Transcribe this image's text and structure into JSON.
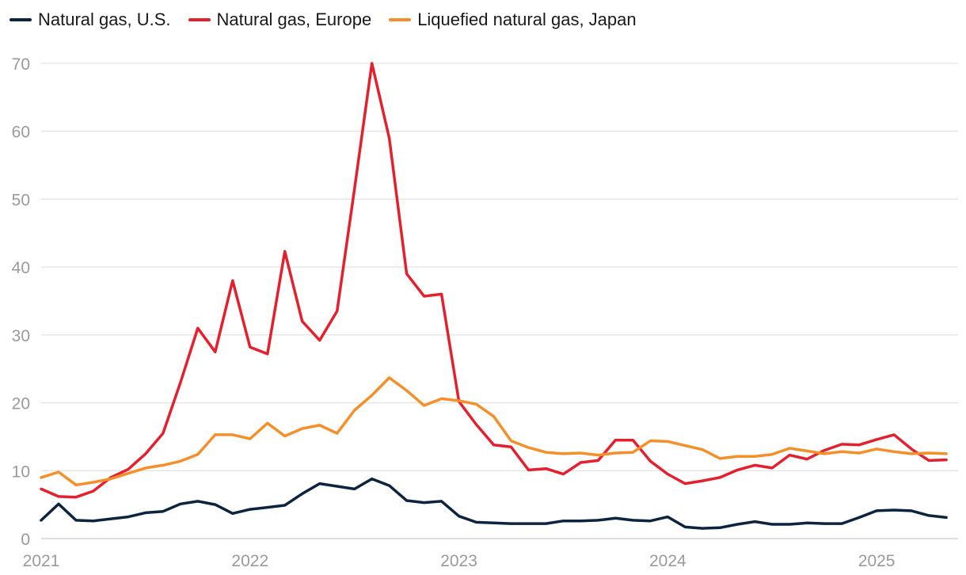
{
  "chart_data": {
    "type": "line",
    "title": "",
    "xlabel": "",
    "ylabel": "",
    "ylim": [
      0,
      70
    ],
    "yticks": [
      0,
      10,
      20,
      30,
      40,
      50,
      60,
      70
    ],
    "xlim": [
      2021.0,
      2025.39
    ],
    "xticks": [
      2021,
      2022,
      2023,
      2024,
      2025
    ],
    "xtick_labels": [
      "2021",
      "2022",
      "2023",
      "2024",
      "2025"
    ],
    "grid": "horizontal",
    "legend_position": "top-left",
    "series": [
      {
        "name": "Natural gas, U.S.",
        "color": "#0d2440",
        "values": [
          2.7,
          5.1,
          2.7,
          2.6,
          2.9,
          3.2,
          3.8,
          4.0,
          5.1,
          5.5,
          5.0,
          3.7,
          4.3,
          4.6,
          4.9,
          6.6,
          8.1,
          7.7,
          7.3,
          8.8,
          7.8,
          5.6,
          5.3,
          5.5,
          3.3,
          2.4,
          2.3,
          2.2,
          2.2,
          2.2,
          2.6,
          2.6,
          2.7,
          3.0,
          2.7,
          2.6,
          3.2,
          1.7,
          1.5,
          1.6,
          2.1,
          2.5,
          2.1,
          2.1,
          2.3,
          2.2,
          2.2,
          3.1,
          4.1,
          4.2,
          4.1,
          3.4,
          3.1
        ]
      },
      {
        "name": "Natural gas, Europe",
        "color": "#e4202f",
        "values": [
          7.3,
          6.2,
          6.1,
          7.0,
          9.0,
          10.2,
          12.5,
          15.5,
          23.0,
          31.0,
          27.5,
          38.0,
          28.2,
          27.2,
          42.3,
          32.0,
          29.2,
          33.5,
          51.5,
          70.0,
          59.0,
          39.0,
          35.7,
          36.0,
          20.2,
          16.8,
          13.8,
          13.5,
          10.1,
          10.3,
          9.5,
          11.2,
          11.5,
          14.5,
          14.5,
          11.4,
          9.5,
          8.1,
          8.5,
          9.0,
          10.1,
          10.8,
          10.4,
          12.3,
          11.7,
          13.0,
          13.9,
          13.8,
          14.6,
          15.3,
          13.2,
          11.5,
          11.6
        ]
      },
      {
        "name": "Liquefied natural gas, Japan",
        "color": "#f48f2a",
        "values": [
          9.0,
          9.8,
          7.9,
          8.3,
          8.8,
          9.6,
          10.4,
          10.8,
          11.4,
          12.4,
          15.3,
          15.3,
          14.7,
          17.0,
          15.1,
          16.2,
          16.7,
          15.5,
          18.9,
          21.1,
          23.7,
          21.8,
          19.6,
          20.6,
          20.3,
          19.8,
          18.0,
          14.4,
          13.4,
          12.7,
          12.5,
          12.6,
          12.3,
          12.6,
          12.7,
          14.4,
          14.3,
          13.7,
          13.1,
          11.8,
          12.1,
          12.1,
          12.4,
          13.3,
          12.9,
          12.5,
          12.8,
          12.6,
          13.2,
          12.8,
          12.5,
          12.6,
          12.5
        ]
      }
    ]
  }
}
